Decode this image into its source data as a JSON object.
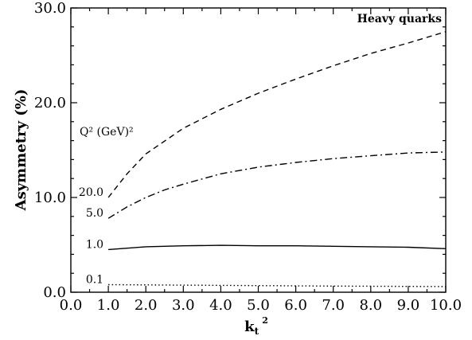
{
  "chart_data": {
    "type": "line",
    "title": "",
    "xlabel": "k",
    "xlabel_sub": "t",
    "xlabel_sup": "2",
    "ylabel": "Asymmetry (%)",
    "xlim": [
      0,
      10
    ],
    "ylim": [
      0,
      30
    ],
    "x_ticks": [
      "0.0",
      "1.0",
      "2.0",
      "3.0",
      "4.0",
      "5.0",
      "6.0",
      "7.0",
      "8.0",
      "9.0",
      "10.0"
    ],
    "y_ticks": [
      "0.0",
      "10.0",
      "20.0",
      "30.0"
    ],
    "grid": false,
    "legend": "none",
    "annotations": {
      "top_right": "Heavy quarks",
      "series_header": "Q² (GeV)²"
    },
    "series": [
      {
        "name": "20.0",
        "style": "dashed",
        "x": [
          1.0,
          1.5,
          2.0,
          3.0,
          4.0,
          5.0,
          6.0,
          7.0,
          8.0,
          9.0,
          10.0
        ],
        "values": [
          10.0,
          12.5,
          14.6,
          17.3,
          19.3,
          21.0,
          22.5,
          23.9,
          25.2,
          26.3,
          27.5
        ]
      },
      {
        "name": "5.0",
        "style": "dashdot",
        "x": [
          1.0,
          1.5,
          2.0,
          2.5,
          3.0,
          4.0,
          5.0,
          6.0,
          7.0,
          8.0,
          9.0,
          10.0
        ],
        "values": [
          7.8,
          9.0,
          10.0,
          10.8,
          11.4,
          12.5,
          13.2,
          13.7,
          14.1,
          14.4,
          14.7,
          14.8
        ]
      },
      {
        "name": "1.0",
        "style": "solid",
        "x": [
          1.0,
          2.0,
          3.0,
          4.0,
          5.0,
          6.0,
          7.0,
          8.0,
          9.0,
          10.0
        ],
        "values": [
          4.5,
          4.8,
          4.9,
          4.95,
          4.9,
          4.9,
          4.85,
          4.8,
          4.75,
          4.6
        ]
      },
      {
        "name": "0.1",
        "style": "dotted",
        "x": [
          1.0,
          3.0,
          5.0,
          7.0,
          10.0
        ],
        "values": [
          0.8,
          0.75,
          0.7,
          0.65,
          0.6
        ]
      }
    ]
  }
}
